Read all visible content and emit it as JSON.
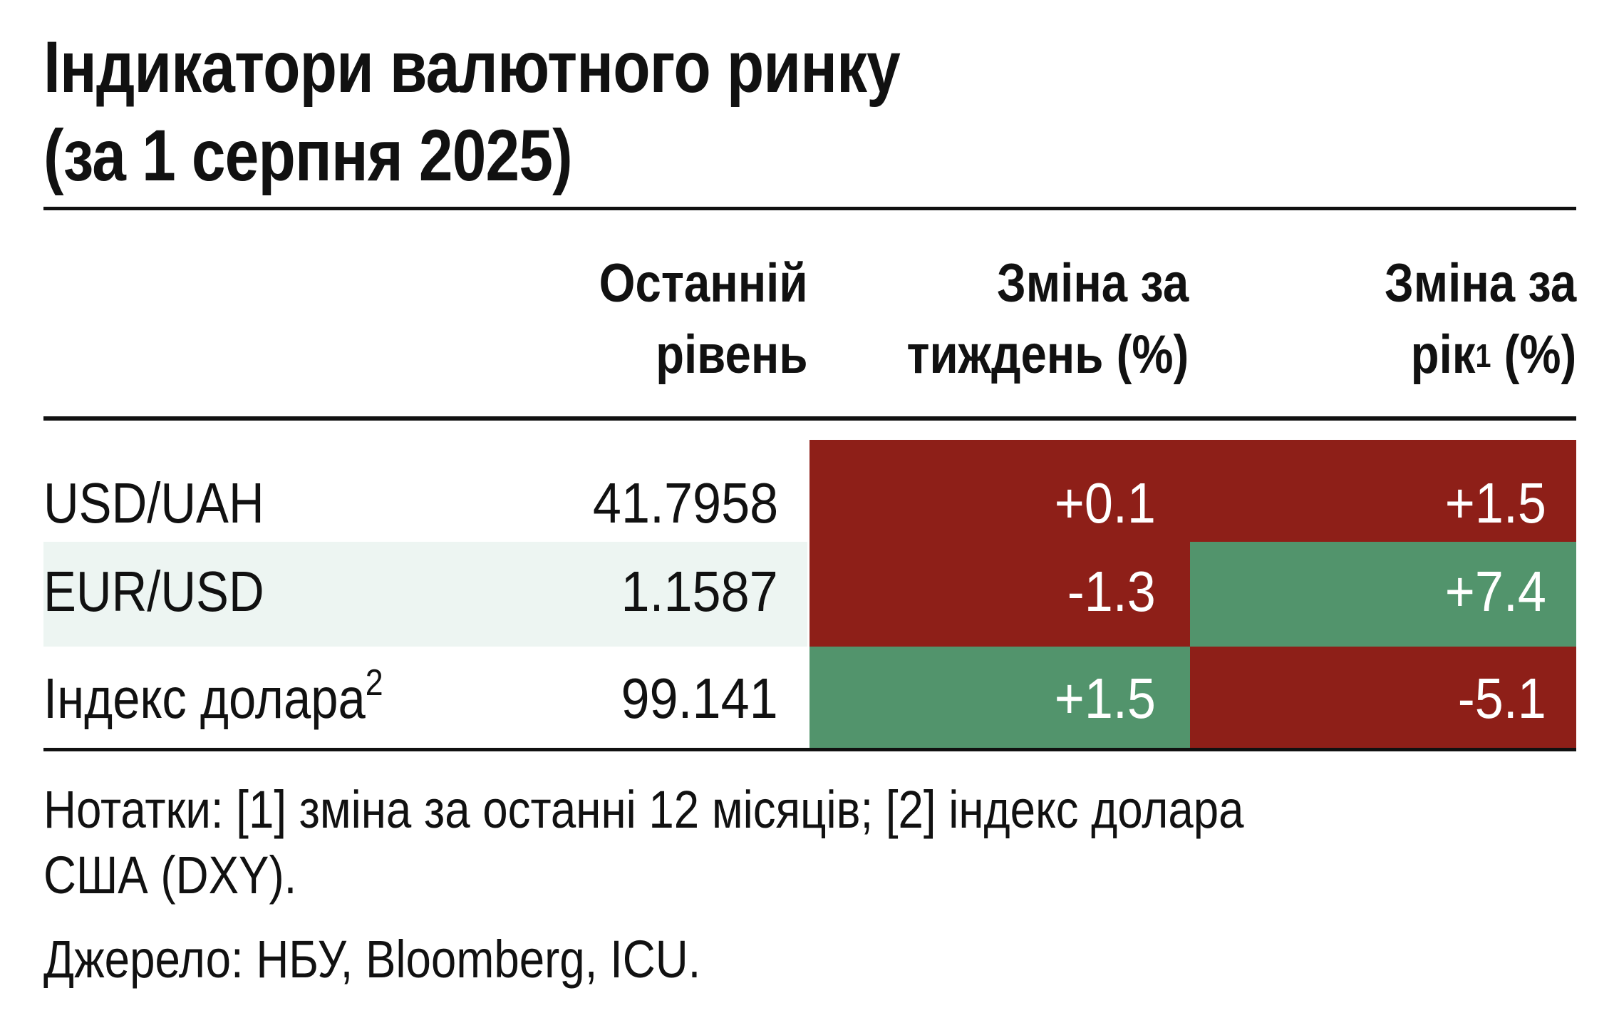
{
  "title_line1": "Індикатори валютного ринку",
  "title_line2": "(за 1 серпня 2025)",
  "colors": {
    "negative": "#8e1f18",
    "positive": "#52946c",
    "row_stripe": "#edf5f2",
    "text": "#111111"
  },
  "chart_data": {
    "type": "table",
    "title": "Індикатори валютного ринку (за 1 серпня 2025)",
    "columns": {
      "level_l1": "Останній",
      "level_l2": "рівень",
      "week_l1": "Зміна за",
      "week_l2": "тиждень (%)",
      "year_l1": "Зміна за",
      "year_l2_pre": "рік",
      "year_sup": "1",
      "year_l2_post": " (%)"
    },
    "rows": [
      {
        "name": "USD/UAH",
        "sup": "",
        "level": "41.7958",
        "week": "+0.1",
        "year": "+1.5",
        "week_value": 0.1,
        "year_value": 1.5
      },
      {
        "name": "EUR/USD",
        "sup": "",
        "level": "1.1587",
        "week": "-1.3",
        "year": "+7.4",
        "week_value": -1.3,
        "year_value": 7.4
      },
      {
        "name": "Індекс долара",
        "sup": "2",
        "level": "99.141",
        "week": "+1.5",
        "year": "-5.1",
        "week_value": 1.5,
        "year_value": -5.1
      }
    ]
  },
  "notes_line1": "Нотатки: [1] зміна за останні 12 місяців; [2] індекс долара",
  "notes_line2": "США (DXY).",
  "source": "Джерело: НБУ, Bloomberg, ICU."
}
